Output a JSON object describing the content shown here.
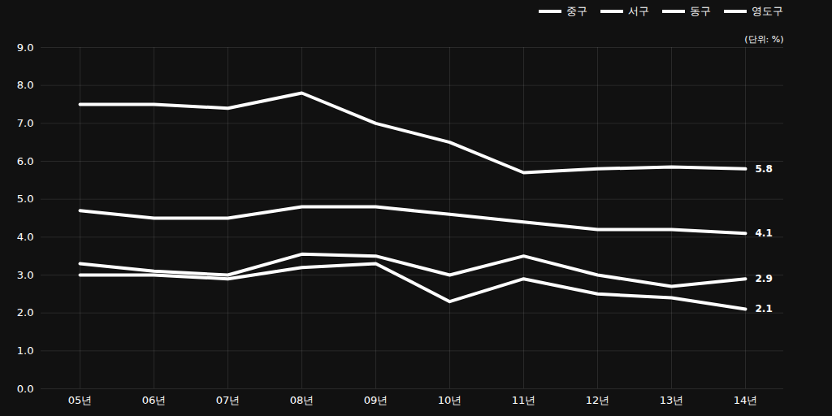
{
  "chart_data": {
    "type": "line",
    "categories": [
      "05년",
      "06년",
      "07년",
      "08년",
      "09년",
      "10년",
      "11년",
      "12년",
      "13년",
      "14년"
    ],
    "series": [
      {
        "name": "중구",
        "color": "#ffffff",
        "values": [
          7.5,
          7.5,
          7.4,
          7.8,
          7.0,
          6.5,
          5.7,
          5.8,
          5.85,
          5.8
        ]
      },
      {
        "name": "서구",
        "color": "#ffffff",
        "values": [
          4.7,
          4.5,
          4.5,
          4.8,
          4.8,
          4.6,
          4.4,
          4.2,
          4.2,
          4.1
        ]
      },
      {
        "name": "동구",
        "color": "#ffffff",
        "values": [
          3.3,
          3.1,
          3.0,
          3.55,
          3.5,
          3.0,
          3.5,
          3.0,
          2.7,
          2.9
        ]
      },
      {
        "name": "영도구",
        "color": "#ffffff",
        "values": [
          3.0,
          3.0,
          2.9,
          3.2,
          3.3,
          2.3,
          2.9,
          2.5,
          2.4,
          2.1
        ]
      }
    ],
    "ylim": [
      0.0,
      9.0
    ],
    "yticks": [
      {
        "value": 0,
        "label": "0.0"
      },
      {
        "value": 1,
        "label": "1.0"
      },
      {
        "value": 2,
        "label": "2.0"
      },
      {
        "value": 3,
        "label": "3.0"
      },
      {
        "value": 4,
        "label": "4.0"
      },
      {
        "value": 5,
        "label": "5.0"
      },
      {
        "value": 6,
        "label": "6.0"
      },
      {
        "value": 7,
        "label": "7.0"
      },
      {
        "value": 8,
        "label": "8.0"
      },
      {
        "value": 9,
        "label": "9.0"
      }
    ],
    "grid": true,
    "legend": "upper right",
    "annotations": [
      {
        "text": "(단위: %)"
      },
      {
        "text": "5.8",
        "x": "14년",
        "y": 5.8
      },
      {
        "text": "4.1",
        "x": "14년",
        "y": 4.1
      },
      {
        "text": "2.9",
        "x": "14년",
        "y": 2.9
      },
      {
        "text": "2.1",
        "x": "14년",
        "y": 2.1
      }
    ]
  }
}
